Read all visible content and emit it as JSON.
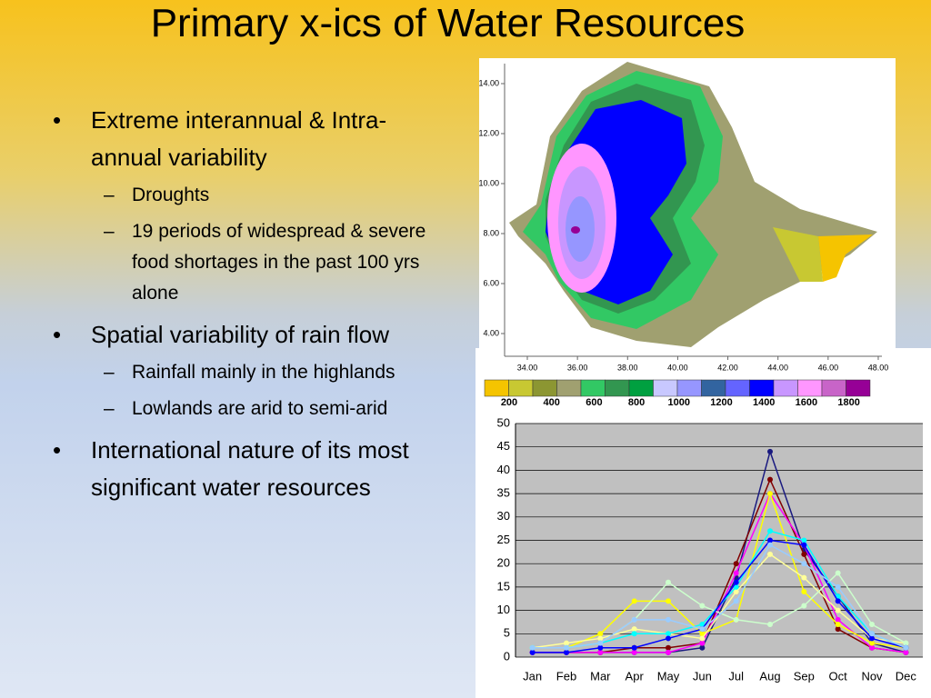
{
  "title": "Primary x-ics of Water Resources",
  "bullets": [
    {
      "text": "Extreme interannual & Intra-annual variability",
      "sub": [
        "Droughts",
        "19 periods of widespread & severe food shortages in the past 100 yrs alone"
      ]
    },
    {
      "text": "Spatial variability of rain flow",
      "sub": [
        "Rainfall mainly in the highlands",
        "Lowlands are arid to semi-arid"
      ]
    },
    {
      "text": "International nature of its most significant water resources",
      "sub": []
    }
  ],
  "map": {
    "xticks": [
      {
        "value": 34,
        "label": "34.00"
      },
      {
        "value": 36,
        "label": "36.00"
      },
      {
        "value": 38,
        "label": "38.00"
      },
      {
        "value": 40,
        "label": "40.00"
      },
      {
        "value": 42,
        "label": "42.00"
      },
      {
        "value": 44,
        "label": "44.00"
      },
      {
        "value": 46,
        "label": "46.00"
      },
      {
        "value": 48,
        "label": "48.00"
      }
    ],
    "yticks": [
      {
        "value": 4,
        "label": "4.00"
      },
      {
        "value": 6,
        "label": "6.00"
      },
      {
        "value": 8,
        "label": "8.00"
      },
      {
        "value": 10,
        "label": "10.00"
      },
      {
        "value": 12,
        "label": "12.00"
      },
      {
        "value": 14,
        "label": "14.00"
      }
    ],
    "legend_colors": [
      "#f5c400",
      "#c8c832",
      "#8c9632",
      "#a0a070",
      "#32c864",
      "#329650",
      "#00a040",
      "#c8c8ff",
      "#9696ff",
      "#3264a0",
      "#6464ff",
      "#0000ff",
      "#c896ff",
      "#ff96ff",
      "#c864c8",
      "#960096"
    ],
    "legend_labels": [
      200,
      400,
      600,
      800,
      1000,
      1200,
      1400,
      1600,
      1800
    ]
  },
  "chart_data": {
    "type": "line",
    "categories": [
      "Jan",
      "Feb",
      "Mar",
      "Apr",
      "May",
      "Jun",
      "Jul",
      "Aug",
      "Sep",
      "Oct",
      "Nov",
      "Dec"
    ],
    "ylim": [
      0,
      50
    ],
    "yticks": [
      0,
      5,
      10,
      15,
      20,
      25,
      30,
      35,
      40,
      45,
      50
    ],
    "grid": true,
    "series": [
      {
        "color": "#1a1a80",
        "values": [
          1,
          1,
          1,
          1,
          1,
          2,
          17,
          44,
          23,
          13,
          3,
          1
        ]
      },
      {
        "color": "#800000",
        "values": [
          1,
          1,
          1,
          2,
          2,
          3,
          20,
          38,
          22,
          6,
          2,
          1
        ]
      },
      {
        "color": "#ff00ff",
        "values": [
          1,
          1,
          1,
          1,
          1,
          3,
          18,
          35,
          24,
          8,
          2,
          1
        ]
      },
      {
        "color": "#ffff00",
        "values": [
          2,
          2,
          5,
          12,
          12,
          5,
          8,
          35,
          14,
          7,
          3,
          2
        ]
      },
      {
        "color": "#ffff99",
        "values": [
          2,
          3,
          4,
          6,
          5,
          4,
          14,
          22,
          17,
          10,
          4,
          3
        ]
      },
      {
        "color": "#ccffcc",
        "values": [
          2,
          2,
          3,
          8,
          16,
          11,
          8,
          7,
          11,
          18,
          7,
          3
        ]
      },
      {
        "color": "#00ffff",
        "values": [
          2,
          2,
          3,
          5,
          5,
          7,
          15,
          27,
          25,
          13,
          5,
          2
        ]
      },
      {
        "color": "#0000ff",
        "values": [
          1,
          1,
          2,
          2,
          4,
          6,
          16,
          25,
          24,
          12,
          4,
          2
        ]
      },
      {
        "color": "#99ccff",
        "values": [
          2,
          2,
          3,
          8,
          8,
          6,
          12,
          24,
          20,
          15,
          5,
          2
        ]
      }
    ]
  }
}
